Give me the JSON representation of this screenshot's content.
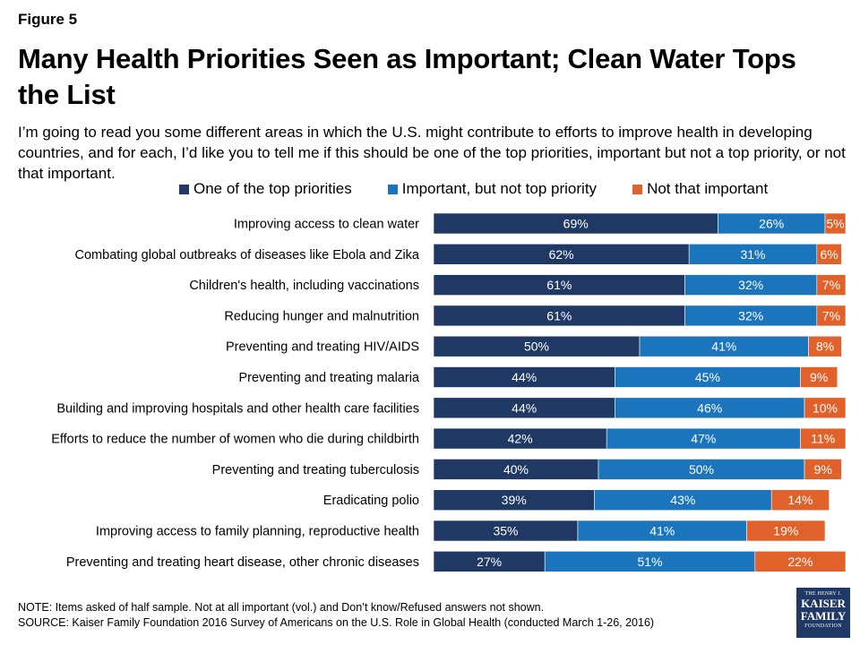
{
  "figure_label": "Figure 5",
  "title": "Many Health Priorities Seen as Important; Clean Water Tops the List",
  "subtitle": "I’m going to read you some different areas in which the U.S. might contribute to efforts to improve health in developing countries, and for each, I’d like you to tell me if this should be one of the top priorities, important but not a top priority, or not that important.",
  "footer": {
    "note": "NOTE: Items asked of half sample. Not at all important (vol.) and Don’t know/Refused answers not shown.",
    "source": "SOURCE: Kaiser Family Foundation 2016 Survey of Americans on the U.S. Role in Global Health (conducted March 1-26, 2016)"
  },
  "logo": {
    "line1": "THE HENRY J.",
    "line2": "KAISER",
    "line3": "FAMILY",
    "line4": "FOUNDATION"
  },
  "chart_data": {
    "type": "bar",
    "orientation": "horizontal",
    "stacked": true,
    "value_suffix": "%",
    "xlim": [
      0,
      100
    ],
    "grid": false,
    "legend_position": "top",
    "categories": [
      "Improving access to clean water",
      "Combating global outbreaks of diseases like Ebola and Zika",
      "Children's health, including vaccinations",
      "Reducing hunger and malnutrition",
      "Preventing and treating HIV/AIDS",
      "Preventing and treating malaria",
      "Building and improving hospitals and other health care facilities",
      "Efforts to reduce the number of women who die during childbirth",
      "Preventing and treating tuberculosis",
      "Eradicating polio",
      "Improving access to family planning, reproductive health",
      "Preventing and treating heart disease, other chronic diseases"
    ],
    "series": [
      {
        "name": "One of the top priorities",
        "color": "#1f3864",
        "values": [
          69,
          62,
          61,
          61,
          50,
          44,
          44,
          42,
          40,
          39,
          35,
          27
        ]
      },
      {
        "name": "Important, but not top priority",
        "color": "#1b75bc",
        "values": [
          26,
          31,
          32,
          32,
          41,
          45,
          46,
          47,
          50,
          43,
          41,
          51
        ]
      },
      {
        "name": "Not that important",
        "color": "#e0622a",
        "values": [
          5,
          6,
          7,
          7,
          8,
          9,
          10,
          11,
          9,
          14,
          19,
          22
        ]
      }
    ]
  }
}
